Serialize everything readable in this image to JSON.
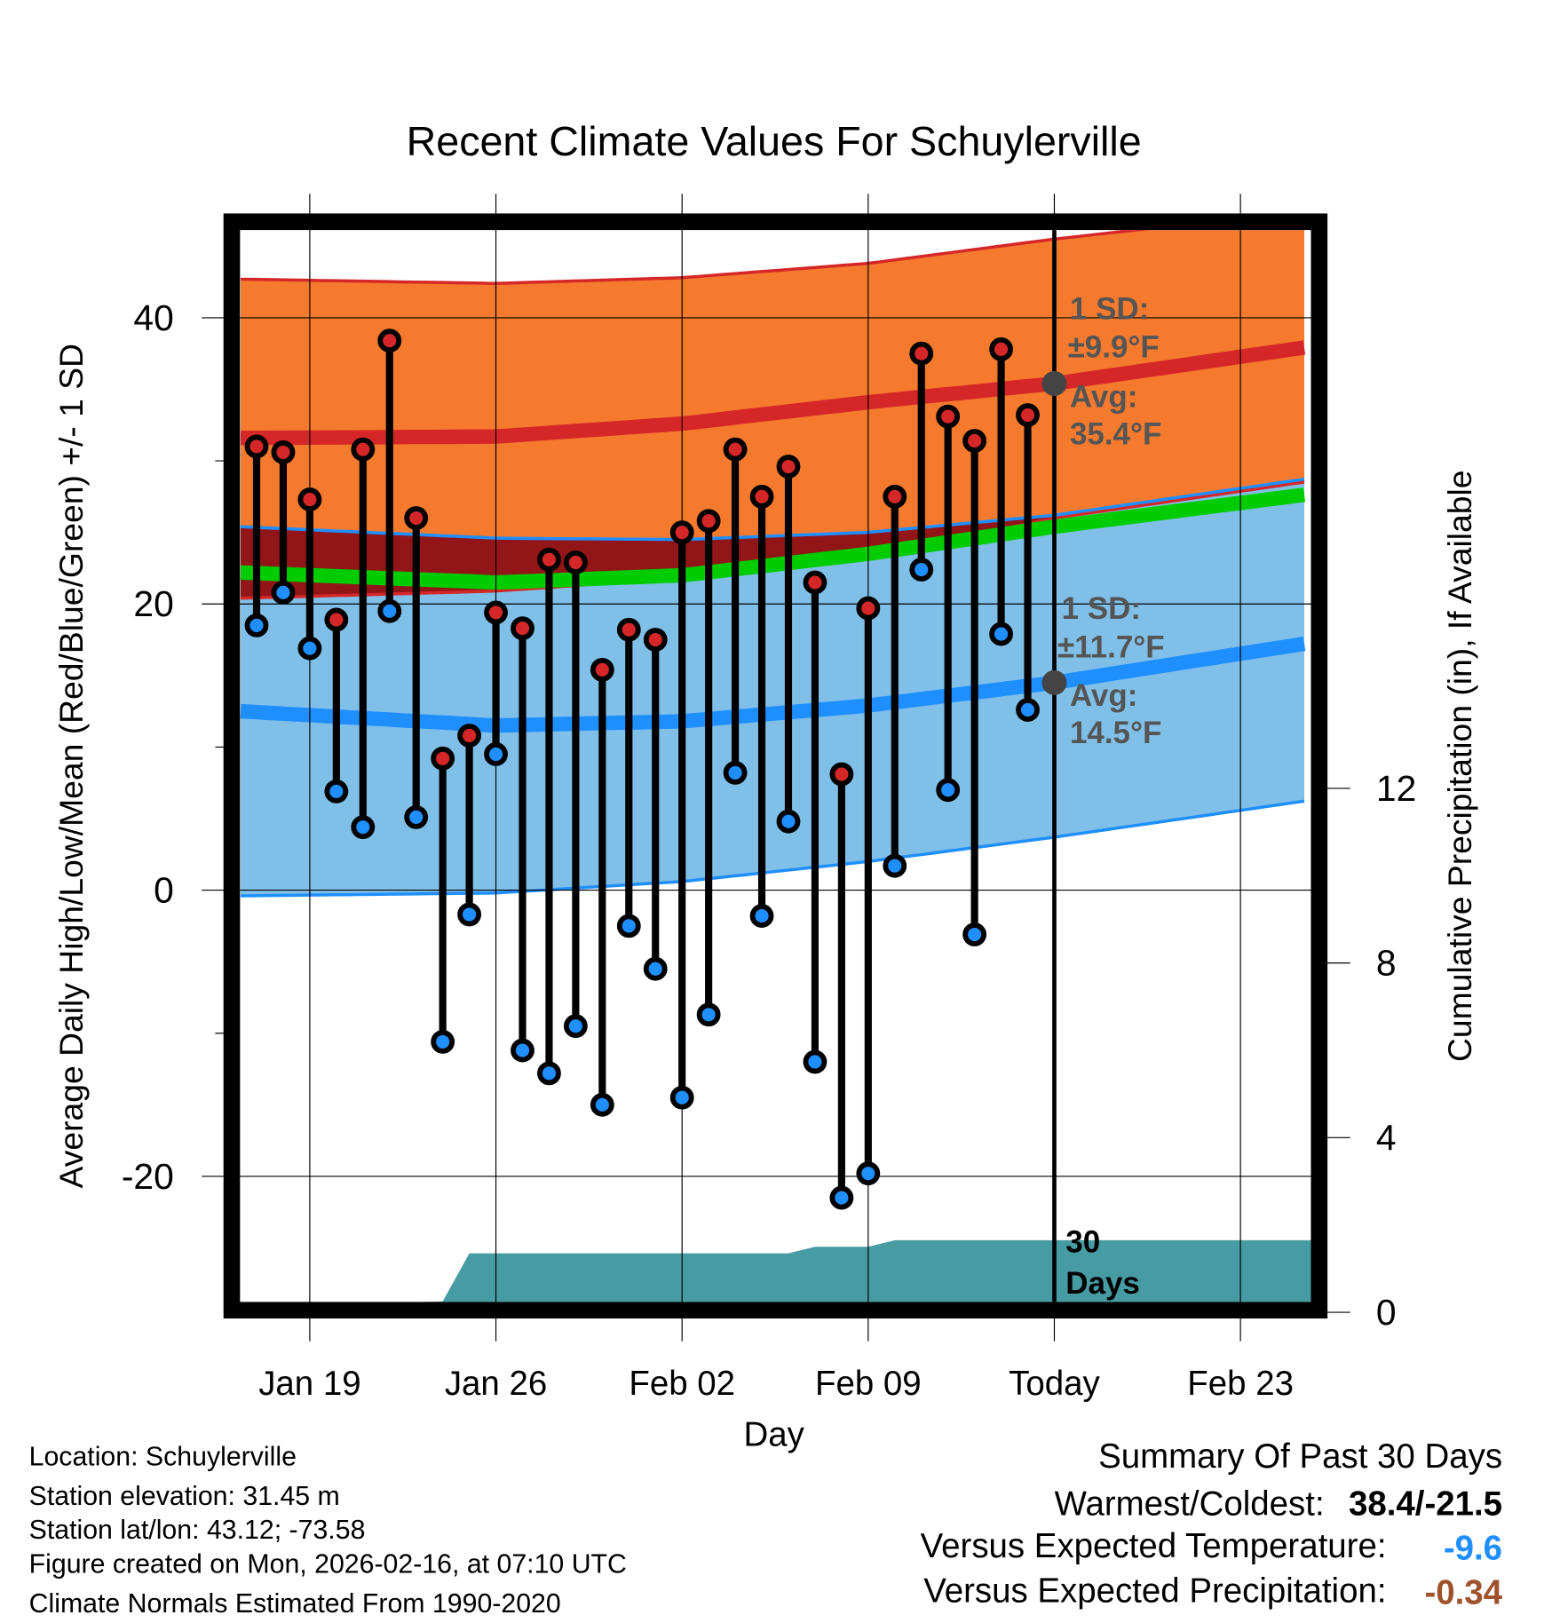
{
  "chart_data": {
    "type": "line",
    "title": "Recent Climate Values For Schuylerville",
    "xlabel": "Day",
    "ylabel": "Average Daily High/Low/Mean (Red/Blue/Green) +/- 1 SD",
    "y2label": "Cumulative Precipitation (in), If Available",
    "ylim": [
      -28.8,
      46.1
    ],
    "y2lim": [
      0,
      24.5
    ],
    "yticks": [
      "40",
      "20",
      "0",
      "-20"
    ],
    "ytick_values": [
      40,
      20,
      0,
      -20
    ],
    "y2ticks": [
      "12",
      "8",
      "4",
      "0"
    ],
    "y2tick_values": [
      12,
      8,
      4,
      0
    ],
    "xticks": [
      "Jan 19",
      "Jan 26",
      "Feb 02",
      "Feb 09",
      "Today",
      "Feb 23"
    ],
    "xtick_days": [
      2,
      9,
      16,
      23,
      30,
      37
    ],
    "x_day_zero": "Jan 17",
    "grid": true,
    "days": [
      "Jan 17",
      "Jan 18",
      "Jan 19",
      "Jan 20",
      "Jan 21",
      "Jan 22",
      "Jan 23",
      "Jan 24",
      "Jan 25",
      "Jan 26",
      "Jan 27",
      "Jan 28",
      "Jan 29",
      "Jan 30",
      "Jan 31",
      "Feb 01",
      "Feb 02",
      "Feb 03",
      "Feb 04",
      "Feb 05",
      "Feb 06",
      "Feb 07",
      "Feb 08",
      "Feb 09",
      "Feb 10",
      "Feb 11",
      "Feb 12",
      "Feb 13",
      "Feb 14",
      "Feb 15"
    ],
    "highs": [
      31.0,
      30.6,
      27.3,
      18.9,
      30.8,
      38.4,
      26.0,
      9.2,
      10.8,
      19.4,
      18.3,
      23.1,
      22.9,
      15.4,
      18.2,
      17.5,
      25.0,
      25.8,
      30.8,
      27.5,
      29.6,
      21.5,
      8.1,
      19.7,
      27.5,
      37.5,
      33.1,
      31.4,
      37.8,
      33.2
    ],
    "lows": [
      18.5,
      20.8,
      16.9,
      6.9,
      4.4,
      19.5,
      5.1,
      -10.6,
      -1.7,
      9.5,
      -11.2,
      -12.8,
      -9.5,
      -15.0,
      -2.5,
      -5.5,
      -14.5,
      -8.7,
      8.2,
      -1.8,
      4.8,
      -12.0,
      -21.5,
      -19.8,
      1.7,
      22.4,
      7.0,
      -3.1,
      17.9,
      12.6
    ],
    "normals": {
      "days": [
        -0.6,
        9,
        16,
        23,
        30,
        39.7
      ],
      "high_upper": [
        42.7,
        42.4,
        42.8,
        43.8,
        45.5,
        47.5
      ],
      "high_avg": [
        31.6,
        31.7,
        32.6,
        34.1,
        35.4,
        38.0
      ],
      "high_lower": [
        20.4,
        20.9,
        21.8,
        23.2,
        26.0,
        28.6
      ],
      "low_upper": [
        25.4,
        24.6,
        24.5,
        25.0,
        26.2,
        28.8
      ],
      "low_avg": [
        12.5,
        11.5,
        11.8,
        12.9,
        14.5,
        17.3
      ],
      "low_lower": [
        -0.4,
        -0.2,
        0.6,
        2.0,
        3.7,
        6.3
      ],
      "mean_avg": [
        22.2,
        21.5,
        22.0,
        23.5,
        25.4,
        27.7
      ]
    },
    "precip_cumulative": {
      "days": [
        -0.6,
        0,
        2,
        4,
        7,
        7.0,
        8,
        20,
        21,
        23,
        24,
        30,
        39.7
      ],
      "values": [
        0,
        0.1,
        0.2,
        0.2,
        0.25,
        0.25,
        1.35,
        1.35,
        1.5,
        1.5,
        1.65,
        1.65,
        1.65
      ]
    },
    "annotations": {
      "high_sd_label": "1 SD:",
      "high_sd_value": "±9.9°F",
      "high_avg_label": "Avg:",
      "high_avg_value": "35.4°F",
      "low_sd_label": "1 SD:",
      "low_sd_value": "±11.7°F",
      "low_avg_label": "Avg:",
      "low_avg_value": "14.5°F",
      "days_label_1": "30",
      "days_label_2": "Days"
    },
    "colors": {
      "high": "#d62728",
      "low": "#1f8fff",
      "mean": "#00cc00",
      "high_band": "#f57a2e",
      "low_band": "#80c0e8",
      "overlap": "#921518",
      "precip": "#479ba3"
    }
  },
  "footer_left": [
    "Location: Schuylerville",
    "Station elevation: 31.45 m",
    "Station lat/lon: 43.12; -73.58",
    "Figure created on Mon, 2026-02-16, at 07:10 UTC",
    "Climate Normals Estimated From 1990-2020"
  ],
  "summary": {
    "title": "Summary Of Past 30 Days",
    "warmest_coldest_label": "Warmest/Coldest:",
    "warmest_coldest_value": "38.4/-21.5",
    "temp_label": "Versus Expected Temperature:",
    "temp_value": "-9.6",
    "precip_label": "Versus Expected Precipitation:",
    "precip_value": "-0.34"
  }
}
